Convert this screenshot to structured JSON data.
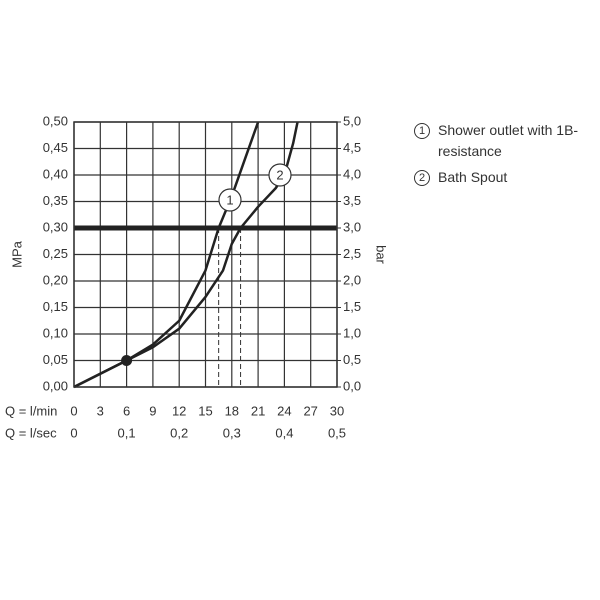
{
  "chart_data": {
    "type": "line",
    "y_label": "MPa",
    "y2_label": "bar",
    "x_label": "Q = l/min",
    "x2_label": "Q = l/sec",
    "xlim": [
      0,
      30
    ],
    "xticks": [
      0,
      3,
      6,
      9,
      12,
      15,
      18,
      21,
      24,
      27,
      30
    ],
    "x2lim": [
      0,
      0.5
    ],
    "x2ticks": [
      0,
      {
        "value": 0.1,
        "label": "0,1"
      },
      {
        "value": 0.2,
        "label": "0,2"
      },
      {
        "value": 0.3,
        "label": "0,3"
      },
      {
        "value": 0.4,
        "label": "0,4"
      },
      {
        "value": 0.5,
        "label": "0,5"
      }
    ],
    "ylim": [
      0,
      0.5
    ],
    "yticks": [
      {
        "value": 0,
        "label": "0,00"
      },
      {
        "value": 0.05,
        "label": "0,05"
      },
      {
        "value": 0.1,
        "label": "0,10"
      },
      {
        "value": 0.15,
        "label": "0,15"
      },
      {
        "value": 0.2,
        "label": "0,20"
      },
      {
        "value": 0.25,
        "label": "0,25"
      },
      {
        "value": 0.3,
        "label": "0,30"
      },
      {
        "value": 0.35,
        "label": "0,35"
      },
      {
        "value": 0.4,
        "label": "0,40"
      },
      {
        "value": 0.45,
        "label": "0,45"
      },
      {
        "value": 0.5,
        "label": "0,50"
      }
    ],
    "y2lim": [
      0,
      5
    ],
    "y2ticks": [
      {
        "value": 0,
        "label": "0,0"
      },
      {
        "value": 0.5,
        "label": "0,5"
      },
      {
        "value": 1,
        "label": "1,0"
      },
      {
        "value": 1.5,
        "label": "1,5"
      },
      {
        "value": 2,
        "label": "2,0"
      },
      {
        "value": 2.5,
        "label": "2,5"
      },
      {
        "value": 3,
        "label": "3,0"
      },
      {
        "value": 3.5,
        "label": "3,5"
      },
      {
        "value": 4,
        "label": "4,0"
      },
      {
        "value": 4.5,
        "label": "4,5"
      },
      {
        "value": 5,
        "label": "5,0"
      }
    ],
    "grid": true,
    "reference_y": 0.3,
    "reference_x": [
      16.5,
      19
    ],
    "point": {
      "x": 6,
      "y": 0.05
    },
    "series": [
      {
        "name": "Shower outlet with 1B-resistance",
        "marker": "1",
        "color": "#222222",
        "x": [
          0,
          3,
          6,
          9,
          12,
          15,
          16.5,
          18,
          19.5,
          21
        ],
        "values": [
          0,
          0.025,
          0.05,
          0.08,
          0.125,
          0.22,
          0.3,
          0.36,
          0.43,
          0.5
        ]
      },
      {
        "name": "Bath Spout",
        "marker": "2",
        "color": "#222222",
        "x": [
          0,
          3,
          6,
          9,
          12,
          15,
          17,
          18,
          19,
          21,
          23,
          24,
          25,
          25.5
        ],
        "values": [
          0,
          0.025,
          0.05,
          0.075,
          0.11,
          0.17,
          0.22,
          0.27,
          0.3,
          0.34,
          0.375,
          0.4,
          0.46,
          0.5
        ]
      }
    ]
  }
}
